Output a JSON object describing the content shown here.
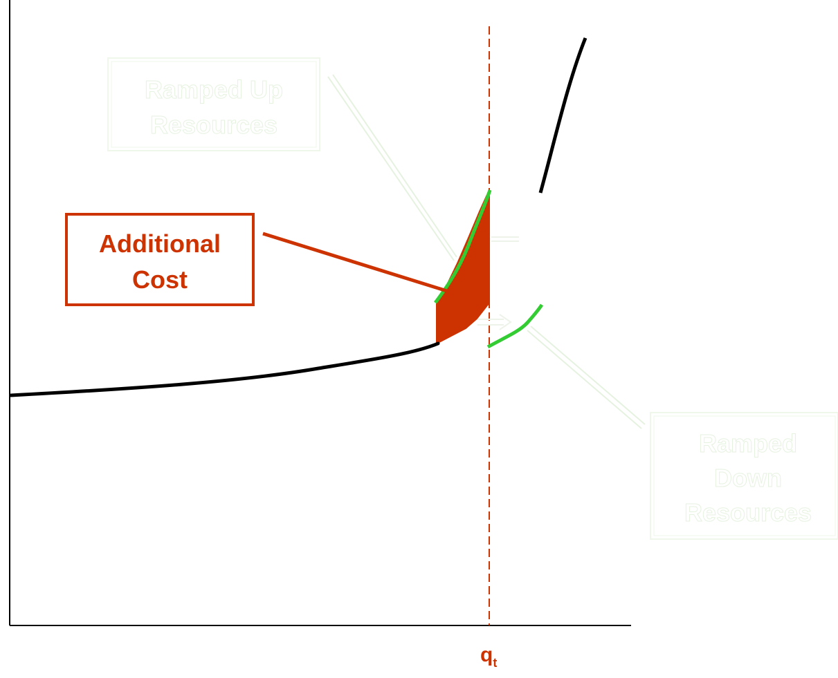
{
  "colors": {
    "axis": "#000000",
    "supply_curve": "#000000",
    "ramp_curve": "#33cc33",
    "threshold": "#cc3300",
    "additional_cost": "#cc3300",
    "ghost_text": "#eef7ea"
  },
  "callouts": {
    "additional_cost": {
      "line1": "Additional",
      "line2": "Cost"
    },
    "ramped_up": {
      "line1": "Ramped Up",
      "line2": "Resources"
    },
    "ramped_down": {
      "line1": "Ramped",
      "line2": "Down",
      "line3": "Resources"
    }
  },
  "threshold_label": {
    "main": "q",
    "sub": "t"
  }
}
